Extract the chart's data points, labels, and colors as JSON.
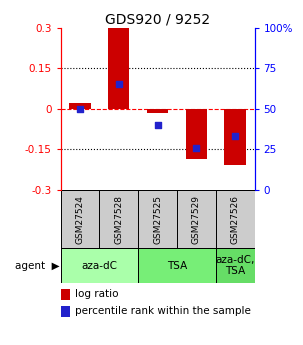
{
  "title": "GDS920 / 9252",
  "samples": [
    "GSM27524",
    "GSM27528",
    "GSM27525",
    "GSM27529",
    "GSM27526"
  ],
  "log_ratios": [
    0.02,
    0.3,
    -0.015,
    -0.185,
    -0.21
  ],
  "percentile_ranks": [
    0.5,
    0.65,
    0.4,
    0.26,
    0.33
  ],
  "ylim": [
    -0.3,
    0.3
  ],
  "yticks_left": [
    -0.3,
    -0.15,
    0,
    0.15,
    0.3
  ],
  "yticks_right_vals": [
    0,
    25,
    50,
    75,
    100
  ],
  "yticks_right_labels": [
    "0",
    "25",
    "50",
    "75",
    "100%"
  ],
  "hlines_dotted": [
    -0.15,
    0.15
  ],
  "hline_dashed": 0,
  "bar_color": "#cc0000",
  "dot_color": "#2222cc",
  "agent_groups": [
    {
      "label": "aza-dC",
      "start": 0,
      "end": 2,
      "color": "#aaffaa"
    },
    {
      "label": "TSA",
      "start": 2,
      "end": 4,
      "color": "#77ee77"
    },
    {
      "label": "aza-dC,\nTSA",
      "start": 4,
      "end": 5,
      "color": "#66dd66"
    }
  ],
  "agent_label": "agent",
  "legend_log_ratio": "log ratio",
  "legend_percentile": "percentile rank within the sample",
  "sample_cell_color": "#cccccc",
  "bar_width": 0.55,
  "dot_size": 25
}
